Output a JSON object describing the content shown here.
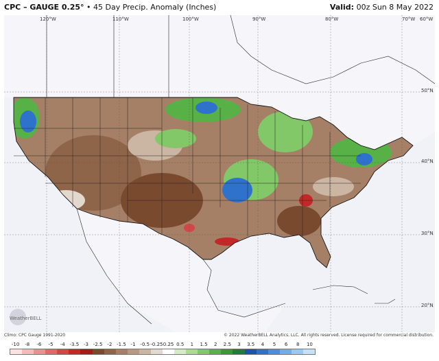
{
  "header": {
    "title": "CPC – GAUGE 0.25°",
    "subtitle": "• 45 Day Precip. Anomaly (Inches)",
    "valid_label": "Valid:",
    "valid_value": "00z Sun 8 May 2022"
  },
  "longitude_labels": [
    "120°W",
    "110°W",
    "100°W",
    "90°W",
    "80°W",
    "70°W",
    "60°W"
  ],
  "latitude_labels": [
    "50°N",
    "40°N",
    "30°N",
    "20°N"
  ],
  "logo": {
    "text": "WeatherBELL"
  },
  "footer": {
    "left": "Climo: CPC Gauge 1991-2020",
    "right": "© 2022 WeatherBELL Analytics, LLC. All rights reserved. License required for commercial distribution."
  },
  "scale": {
    "labels": [
      "-10",
      "-8",
      "-6",
      "-5",
      "-4",
      "-3.5",
      "-3",
      "-2.5",
      "-2",
      "-1.5",
      "-1",
      "-0.5",
      "-0.25",
      "0.25",
      "0.5",
      "1",
      "1.5",
      "2",
      "2.5",
      "3",
      "3.5",
      "4",
      "5",
      "6",
      "8",
      "10"
    ],
    "colors": [
      "#fde0e0",
      "#f6b8b8",
      "#ec8f8f",
      "#e06868",
      "#d14646",
      "#c22828",
      "#a51b1b",
      "#7a4a2f",
      "#8f6549",
      "#a68066",
      "#b89a83",
      "#cbb5a3",
      "#e2d8ce",
      "#ffffff",
      "#d4ecc6",
      "#abdb93",
      "#82c768",
      "#58b146",
      "#379a36",
      "#1f7f3a",
      "#1a55a8",
      "#2f72cc",
      "#4b8ee0",
      "#71ade9",
      "#9ac8ef",
      "#c6e1f6"
    ]
  },
  "colors": {
    "ocean": "#f1f2f8",
    "land_bg": "#ece9e4",
    "dry_brown": "#a0816a",
    "wet_green": "#5fb152",
    "very_wet_blue": "#2f6fd0",
    "very_dry_red": "#c62a2a"
  }
}
